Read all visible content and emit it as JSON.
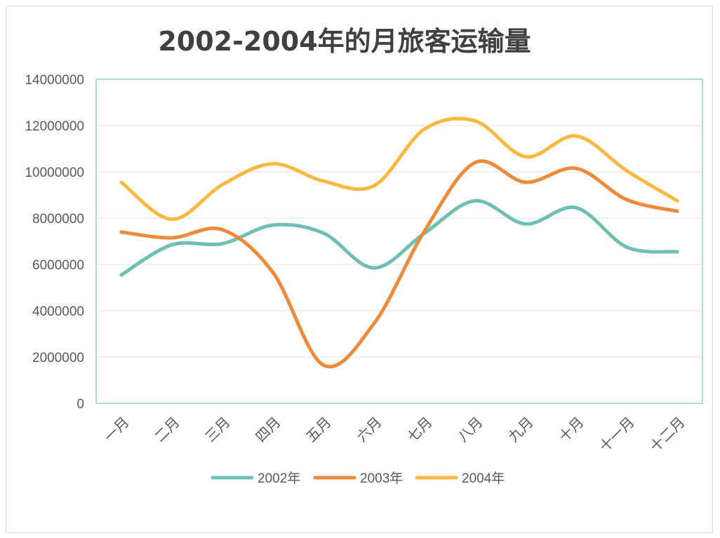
{
  "chart_data": {
    "type": "line",
    "title": "2002-2004年的月旅客运输量",
    "xlabel": "",
    "ylabel": "",
    "ylim": [
      0,
      14000000
    ],
    "yticks": [
      0,
      2000000,
      4000000,
      6000000,
      8000000,
      10000000,
      12000000,
      14000000
    ],
    "ytick_labels": [
      "0",
      "2000000",
      "4000000",
      "6000000",
      "8000000",
      "10000000",
      "12000000",
      "14000000"
    ],
    "categories": [
      "一月",
      "二月",
      "三月",
      "四月",
      "五月",
      "六月",
      "七月",
      "八月",
      "九月",
      "十月",
      "十一月",
      "十二月"
    ],
    "grid": true,
    "legend_position": "bottom",
    "series": [
      {
        "name": "2002年",
        "color": "#70BFB4",
        "values": [
          5550000,
          6850000,
          6900000,
          7700000,
          7350000,
          5850000,
          7350000,
          8750000,
          7750000,
          8450000,
          6750000,
          6550000
        ]
      },
      {
        "name": "2003年",
        "color": "#ED8A3C",
        "values": [
          7400000,
          7150000,
          7500000,
          5650000,
          1650000,
          3450000,
          7450000,
          10400000,
          9550000,
          10150000,
          8800000,
          8300000
        ]
      },
      {
        "name": "2004年",
        "color": "#F9B942",
        "values": [
          9550000,
          7950000,
          9450000,
          10350000,
          9600000,
          9400000,
          11850000,
          12200000,
          10650000,
          11550000,
          10050000,
          8750000
        ]
      }
    ]
  }
}
